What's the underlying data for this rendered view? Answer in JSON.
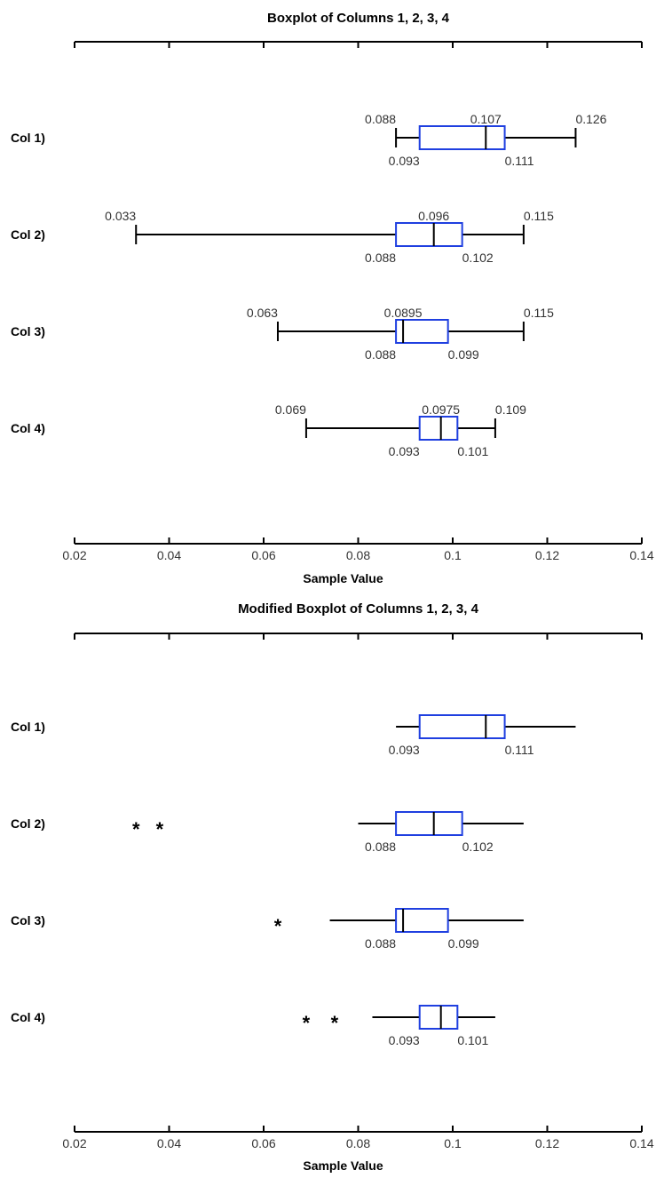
{
  "chart_data": [
    {
      "type": "boxplot",
      "title": "Boxplot of Columns 1, 2, 3, 4",
      "xlabel": "Sample Value",
      "xlim": [
        0.02,
        0.14
      ],
      "xticks": [
        0.02,
        0.04,
        0.06,
        0.08,
        0.1,
        0.12,
        0.14
      ],
      "xtick_labels": [
        "0.02",
        "0.04",
        "0.06",
        "0.08",
        "0.1",
        "0.12",
        "0.14"
      ],
      "grid": false,
      "categories": [
        "Col 1)",
        "Col 2)",
        "Col 3)",
        "Col 4)"
      ],
      "series": [
        {
          "whisker_low": 0.088,
          "q1": 0.093,
          "median": 0.107,
          "q3": 0.111,
          "whisker_high": 0.126,
          "outliers": [],
          "labels": {
            "whisker_low": "0.088",
            "q1": "0.093",
            "median": "0.107",
            "q3": "0.111",
            "whisker_high": "0.126"
          }
        },
        {
          "whisker_low": 0.033,
          "q1": 0.088,
          "median": 0.096,
          "q3": 0.102,
          "whisker_high": 0.115,
          "outliers": [],
          "labels": {
            "whisker_low": "0.033",
            "q1": "0.088",
            "median": "0.096",
            "q3": "0.102",
            "whisker_high": "0.115"
          }
        },
        {
          "whisker_low": 0.063,
          "q1": 0.088,
          "median": 0.0895,
          "q3": 0.099,
          "whisker_high": 0.115,
          "outliers": [],
          "labels": {
            "whisker_low": "0.063",
            "q1": "0.088",
            "median": "0.0895",
            "q3": "0.099",
            "whisker_high": "0.115"
          }
        },
        {
          "whisker_low": 0.069,
          "q1": 0.093,
          "median": 0.0975,
          "q3": 0.101,
          "whisker_high": 0.109,
          "outliers": [],
          "labels": {
            "whisker_low": "0.069",
            "q1": "0.093",
            "median": "0.0975",
            "q3": "0.101",
            "whisker_high": "0.109"
          }
        }
      ]
    },
    {
      "type": "boxplot",
      "title": "Modified Boxplot of Columns 1, 2, 3, 4",
      "xlabel": "Sample Value",
      "xlim": [
        0.02,
        0.14
      ],
      "xticks": [
        0.02,
        0.04,
        0.06,
        0.08,
        0.1,
        0.12,
        0.14
      ],
      "xtick_labels": [
        "0.02",
        "0.04",
        "0.06",
        "0.08",
        "0.1",
        "0.12",
        "0.14"
      ],
      "grid": false,
      "categories": [
        "Col 1)",
        "Col 2)",
        "Col 3)",
        "Col 4)"
      ],
      "series": [
        {
          "whisker_low": 0.088,
          "q1": 0.093,
          "median": 0.107,
          "q3": 0.111,
          "whisker_high": 0.126,
          "outliers": [],
          "labels": {
            "q1": "0.093",
            "q3": "0.111"
          }
        },
        {
          "whisker_low": 0.08,
          "q1": 0.088,
          "median": 0.096,
          "q3": 0.102,
          "whisker_high": 0.115,
          "outliers": [
            0.033,
            0.038
          ],
          "labels": {
            "q1": "0.088",
            "q3": "0.102"
          }
        },
        {
          "whisker_low": 0.074,
          "q1": 0.088,
          "median": 0.0895,
          "q3": 0.099,
          "whisker_high": 0.115,
          "outliers": [
            0.063
          ],
          "labels": {
            "q1": "0.088",
            "q3": "0.099"
          }
        },
        {
          "whisker_low": 0.083,
          "q1": 0.093,
          "median": 0.0975,
          "q3": 0.101,
          "whisker_high": 0.109,
          "outliers": [
            0.069,
            0.075
          ],
          "labels": {
            "q1": "0.093",
            "q3": "0.101"
          }
        }
      ]
    }
  ],
  "colors": {
    "box": "#1f3fe0",
    "whisker": "#000000",
    "text": "#333333"
  },
  "outlier_marker": "*"
}
